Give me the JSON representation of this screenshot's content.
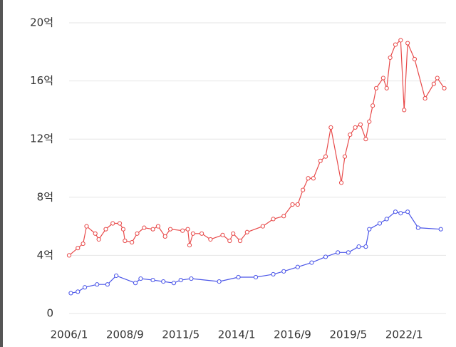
{
  "chart_data": {
    "type": "line",
    "xlim": [
      "2006/1",
      "2024/1"
    ],
    "xticks": [
      "2006/1",
      "2008/9",
      "2011/5",
      "2014/1",
      "2016/9",
      "2019/5",
      "2022/1"
    ],
    "ylim": [
      0,
      20
    ],
    "yticks": [
      0,
      {
        "value": 4,
        "label": "4억"
      },
      {
        "value": 8,
        "label": "8억"
      },
      {
        "value": 12,
        "label": "12억"
      },
      {
        "value": 16,
        "label": "16억"
      },
      {
        "value": 20,
        "label": "20억"
      }
    ],
    "grid": true,
    "series": [
      {
        "color": "#e84a4a",
        "x": [
          "2006/1",
          "2006/6",
          "2006/9",
          "2006/11",
          "2007/4",
          "2007/6",
          "2007/10",
          "2008/2",
          "2008/6",
          "2008/8",
          "2008/9",
          "2009/1",
          "2009/4",
          "2009/8",
          "2010/1",
          "2010/4",
          "2010/8",
          "2010/11",
          "2011/6",
          "2011/9",
          "2011/10",
          "2011/12",
          "2012/5",
          "2012/10",
          "2013/5",
          "2013/9",
          "2013/11",
          "2014/3",
          "2014/7",
          "2015/4",
          "2015/10",
          "2016/4",
          "2016/9",
          "2016/12",
          "2017/3",
          "2017/6",
          "2017/9",
          "2018/1",
          "2018/4",
          "2018/7",
          "2019/1",
          "2019/3",
          "2019/6",
          "2019/9",
          "2019/12",
          "2020/3",
          "2020/5",
          "2020/7",
          "2020/9",
          "2021/1",
          "2021/3",
          "2021/5",
          "2021/8",
          "2021/11",
          "2022/1",
          "2022/3",
          "2022/7",
          "2023/1",
          "2023/6",
          "2023/8",
          "2023/12"
        ],
        "values": [
          4.0,
          4.5,
          4.8,
          6.0,
          5.5,
          5.1,
          5.8,
          6.2,
          6.2,
          5.8,
          5.0,
          4.9,
          5.5,
          5.9,
          5.8,
          6.0,
          5.3,
          5.8,
          5.7,
          5.8,
          4.7,
          5.5,
          5.5,
          5.1,
          5.4,
          5.0,
          5.5,
          5.0,
          5.6,
          6.0,
          6.5,
          6.7,
          7.5,
          7.5,
          8.5,
          9.3,
          9.3,
          10.5,
          10.8,
          12.8,
          9.0,
          10.8,
          12.3,
          12.8,
          13.0,
          12.0,
          13.2,
          14.3,
          15.5,
          16.2,
          15.5,
          17.6,
          18.5,
          18.8,
          14.0,
          18.6,
          17.5,
          14.8,
          15.8,
          16.2,
          15.5
        ]
      },
      {
        "color": "#4a55e8",
        "x": [
          "2006/2",
          "2006/6",
          "2006/10",
          "2007/5",
          "2007/11",
          "2008/4",
          "2009/3",
          "2009/6",
          "2010/1",
          "2010/7",
          "2011/1",
          "2011/5",
          "2011/11",
          "2013/3",
          "2014/2",
          "2014/12",
          "2015/10",
          "2016/4",
          "2016/12",
          "2017/8",
          "2018/4",
          "2018/11",
          "2019/5",
          "2019/11",
          "2020/3",
          "2020/5",
          "2020/11",
          "2021/3",
          "2021/8",
          "2021/11",
          "2022/3",
          "2022/9",
          "2023/10"
        ],
        "values": [
          1.4,
          1.5,
          1.8,
          2.0,
          2.0,
          2.6,
          2.1,
          2.4,
          2.3,
          2.2,
          2.1,
          2.3,
          2.4,
          2.2,
          2.5,
          2.5,
          2.7,
          2.9,
          3.2,
          3.5,
          3.9,
          4.2,
          4.2,
          4.6,
          4.6,
          5.8,
          6.2,
          6.5,
          7.0,
          6.9,
          7.0,
          5.9,
          5.8
        ]
      }
    ]
  }
}
